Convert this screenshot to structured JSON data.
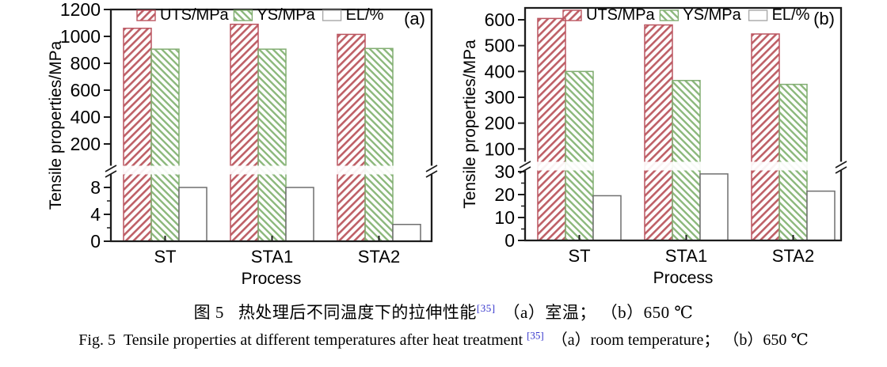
{
  "chart_data": [
    {
      "type": "bar",
      "panel_label": "(a)",
      "title": "",
      "xlabel": "Process",
      "ylabel": "Tensile properties/MPa",
      "categories": [
        "ST",
        "STA1",
        "STA2"
      ],
      "series": [
        {
          "name": "UTS/MPa",
          "style": "uts",
          "axis": "upper",
          "values": [
            1060,
            1090,
            1015
          ]
        },
        {
          "name": "YS/MPa",
          "style": "ys",
          "axis": "upper",
          "values": [
            905,
            905,
            910
          ]
        },
        {
          "name": "EL/%",
          "style": "el",
          "axis": "lower",
          "values": [
            8,
            8,
            2.5
          ]
        }
      ],
      "upper_axis": {
        "ticks": [
          200,
          400,
          600,
          800,
          1000,
          1200
        ],
        "range": [
          0,
          1200
        ],
        "unit": "MPa"
      },
      "lower_axis": {
        "ticks": [
          0,
          4,
          8
        ],
        "minor_step": 2,
        "unit": "%"
      },
      "axis_break": true,
      "legend_position": "top-inside",
      "grid": false
    },
    {
      "type": "bar",
      "panel_label": "(b)",
      "title": "",
      "xlabel": "Process",
      "ylabel": "Tensile properties/MPa",
      "categories": [
        "ST",
        "STA1",
        "STA2"
      ],
      "series": [
        {
          "name": "UTS/MPa",
          "style": "uts",
          "axis": "upper",
          "values": [
            605,
            580,
            545
          ]
        },
        {
          "name": "YS/MPa",
          "style": "ys",
          "axis": "upper",
          "values": [
            400,
            365,
            350
          ]
        },
        {
          "name": "EL/%",
          "style": "el",
          "axis": "lower",
          "values": [
            19.5,
            29,
            21.5
          ]
        }
      ],
      "upper_axis": {
        "ticks": [
          100,
          200,
          300,
          400,
          500,
          600
        ],
        "range": [
          0,
          600
        ],
        "unit": "MPa"
      },
      "lower_axis": {
        "ticks": [
          0,
          10,
          20,
          30
        ],
        "minor_step": 5,
        "unit": "%"
      },
      "axis_break": true,
      "legend_position": "top-inside",
      "grid": false
    }
  ],
  "caption": {
    "zh_label": "图 5",
    "zh_text": "热处理后不同温度下的拉伸性能",
    "ref": "[35]",
    "zh_items": "（a）室温； （b）650 ℃",
    "en_label": "Fig. 5",
    "en_text": "Tensile properties at different temperatures after heat treatment",
    "en_items": "（a）room temperature； （b）650 ℃"
  },
  "colors": {
    "uts": "#be5f66",
    "uts_border": "#bb5560",
    "ys": "#8cb87c",
    "ys_border": "#82ad72",
    "el_fill": "#ffffff",
    "el_border": "#6f6f6f",
    "legend_el_border": "#a9a9a9",
    "axis": "#1c1c1c",
    "text": "#000000",
    "ref_blue": "#3333cc"
  }
}
